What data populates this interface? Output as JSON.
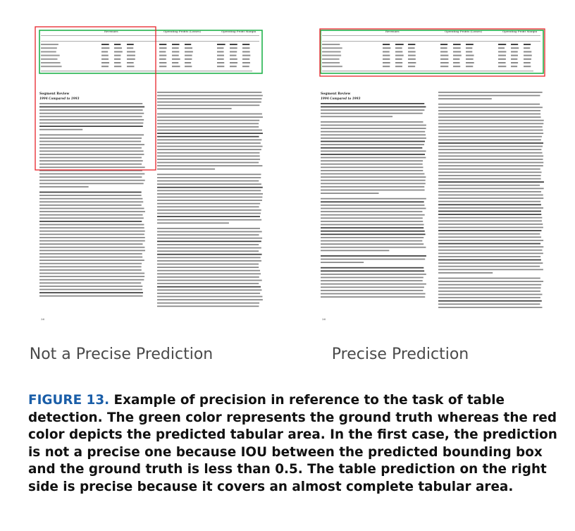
{
  "left_panel": {
    "caption": "Not a Precise Prediction",
    "doc": {
      "table_group_headers": [
        "Revenues",
        "Operating Profits (Losses)",
        "Operating Profit Margin"
      ],
      "section_heading": "Segment Review",
      "section_subheading": "1994 Compared to 1993",
      "page_number": "26"
    }
  },
  "right_panel": {
    "caption": "Precise Prediction",
    "doc": {
      "table_group_headers": [
        "Revenues",
        "Operating Profits (Losses)",
        "Operating Profit Margin"
      ],
      "section_heading": "Segment Review",
      "section_subheading": "1994 Compared to 1993",
      "page_number": "26"
    }
  },
  "figure": {
    "label": "FIGURE 13.",
    "text": "Example of precision in reference to the task of table detection. The green color represents the ground truth whereas the red color depicts the predicted tabular area. In the first case, the prediction is not a precise one because IOU between the predicted bounding box and the ground truth is less than 0.5. The table prediction on the right side is precise because it covers an almost complete tabular area."
  },
  "colors": {
    "ground_truth": "#22b24c",
    "prediction": "#e8232a",
    "figure_label": "#1a5ea8"
  }
}
